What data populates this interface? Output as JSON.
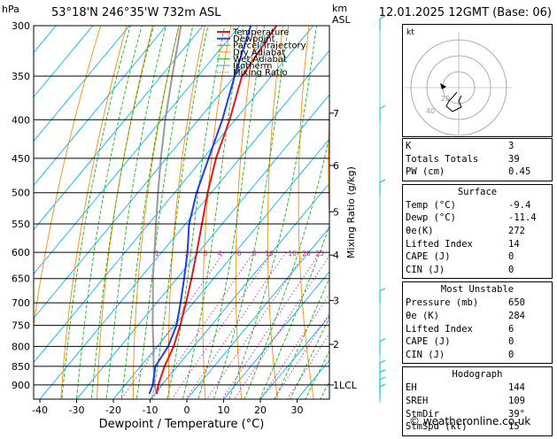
{
  "header": {
    "pressure_unit": "hPa",
    "location": "53°18'N 246°35'W 732m ASL",
    "height_unit_km": "km",
    "height_unit_asl": "ASL",
    "datetime": "12.01.2025 12GMT (Base: 06)"
  },
  "chart_data": {
    "type": "skew-t",
    "xlabel": "Dewpoint / Temperature (°C)",
    "y2label": "Mixing Ratio (g/kg)",
    "pressure_ticks": [
      300,
      350,
      400,
      450,
      500,
      550,
      600,
      650,
      700,
      750,
      800,
      850,
      900
    ],
    "temp_ticks": [
      -40,
      -30,
      -20,
      -10,
      0,
      10,
      20,
      30
    ],
    "altitude_ticks": [
      {
        "label": "7",
        "p": 392
      },
      {
        "label": "6",
        "p": 460
      },
      {
        "label": "5",
        "p": 530
      },
      {
        "label": "4",
        "p": 605
      },
      {
        "label": "3",
        "p": 695
      },
      {
        "label": "2",
        "p": 795
      },
      {
        "label": "1LCL",
        "p": 900
      }
    ],
    "mixing_ratio_labels": [
      "1",
      "2",
      "3",
      "4",
      "6",
      "8",
      "10",
      "16",
      "20",
      "25"
    ],
    "legend": [
      "Temperature",
      "Dewpoint",
      "Parcel Trajectory",
      "Dry Adiabat",
      "Wet Adiabat",
      "Isotherm",
      "Mixing Ratio"
    ],
    "colors": {
      "temperature": "#e8141e",
      "dewpoint": "#1f3cf0",
      "parcel": "#9a9a9a",
      "dry_adiabat": "#ff8a00",
      "wet_adiabat": "#18b418",
      "isotherm": "#00b4ff",
      "mixing_ratio": "#d01fb0"
    },
    "temperature_profile": [
      {
        "p": 925,
        "t": -9.4
      },
      {
        "p": 900,
        "t": -11.0
      },
      {
        "p": 850,
        "t": -13.5
      },
      {
        "p": 800,
        "t": -15.5
      },
      {
        "p": 750,
        "t": -18.5
      },
      {
        "p": 700,
        "t": -22.0
      },
      {
        "p": 650,
        "t": -26.0
      },
      {
        "p": 600,
        "t": -30.5
      },
      {
        "p": 550,
        "t": -35.5
      },
      {
        "p": 500,
        "t": -41.0
      },
      {
        "p": 450,
        "t": -46.5
      },
      {
        "p": 400,
        "t": -51.5
      },
      {
        "p": 350,
        "t": -58.0
      },
      {
        "p": 300,
        "t": -60.0
      }
    ],
    "dewpoint_profile": [
      {
        "p": 925,
        "t": -11.4
      },
      {
        "p": 900,
        "t": -12.5
      },
      {
        "p": 850,
        "t": -16.0
      },
      {
        "p": 800,
        "t": -17.0
      },
      {
        "p": 750,
        "t": -19.5
      },
      {
        "p": 700,
        "t": -23.5
      },
      {
        "p": 650,
        "t": -28.0
      },
      {
        "p": 600,
        "t": -33.0
      },
      {
        "p": 550,
        "t": -39.0
      },
      {
        "p": 500,
        "t": -44.0
      },
      {
        "p": 450,
        "t": -48.5
      },
      {
        "p": 400,
        "t": -53.5
      },
      {
        "p": 350,
        "t": -60.0
      },
      {
        "p": 300,
        "t": -67.0
      }
    ],
    "parcel_profile": [
      {
        "p": 925,
        "t": -9.4
      },
      {
        "p": 900,
        "t": -12.0
      },
      {
        "p": 850,
        "t": -16.5
      },
      {
        "p": 800,
        "t": -21.0
      },
      {
        "p": 750,
        "t": -26.0
      },
      {
        "p": 700,
        "t": -31.0
      },
      {
        "p": 650,
        "t": -36.5
      },
      {
        "p": 600,
        "t": -42.0
      },
      {
        "p": 550,
        "t": -48.0
      },
      {
        "p": 500,
        "t": -54.5
      },
      {
        "p": 450,
        "t": -61.5
      },
      {
        "p": 400,
        "t": -69.0
      },
      {
        "p": 350,
        "t": -77.0
      },
      {
        "p": 300,
        "t": -86.0
      }
    ],
    "wind_barbs_p": [
      300,
      395,
      495,
      690,
      805,
      860,
      885,
      905,
      925
    ]
  },
  "hodograph": {
    "label": "kt",
    "rings": [
      "20",
      "40"
    ]
  },
  "indices": {
    "K": "3",
    "Totals Totals": "39",
    "PW (cm)": "0.45"
  },
  "surface": {
    "title": "Surface",
    "rows": [
      {
        "label": "Temp (°C)",
        "value": "-9.4"
      },
      {
        "label": "Dewp (°C)",
        "value": "-11.4"
      },
      {
        "label": "θe(K)",
        "value": "272"
      },
      {
        "label": "Lifted Index",
        "value": "14"
      },
      {
        "label": "CAPE (J)",
        "value": "0"
      },
      {
        "label": "CIN (J)",
        "value": "0"
      }
    ]
  },
  "most_unstable": {
    "title": "Most Unstable",
    "rows": [
      {
        "label": "Pressure (mb)",
        "value": "650"
      },
      {
        "label": "θe (K)",
        "value": "284"
      },
      {
        "label": "Lifted Index",
        "value": "6"
      },
      {
        "label": "CAPE (J)",
        "value": "0"
      },
      {
        "label": "CIN (J)",
        "value": "0"
      }
    ]
  },
  "hodograph_table": {
    "title": "Hodograph",
    "rows": [
      {
        "label": "EH",
        "value": "144"
      },
      {
        "label": "SREH",
        "value": "109"
      },
      {
        "label": "StmDir",
        "value": "39°"
      },
      {
        "label": "StmSpd (kt)",
        "value": "15"
      }
    ]
  },
  "footer": {
    "copyright": "© weatheronline.co.uk"
  }
}
